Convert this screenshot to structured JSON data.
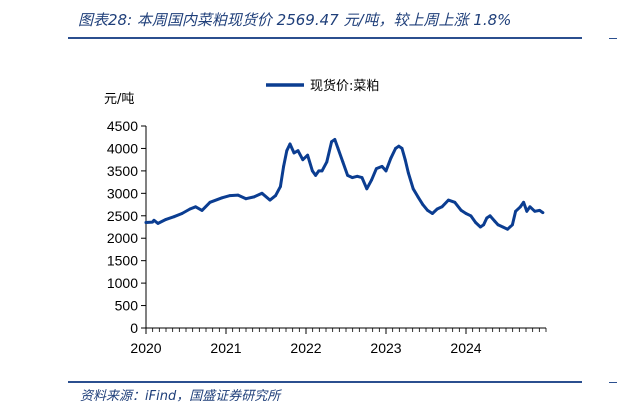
{
  "figure": {
    "title": "图表28:  本周国内菜粕现货价 2569.47 元/吨，较上周上涨 1.8%",
    "source": "资料来源：iFind，国盛证券研究所"
  },
  "chart_data": {
    "type": "line",
    "title": "",
    "xlabel": "",
    "ylabel": "元/吨",
    "legend": {
      "position": "top-center"
    },
    "grid": false,
    "xlim": [
      2020.0,
      2025.0
    ],
    "ylim": [
      0,
      4500
    ],
    "x_ticks": [
      "2020",
      "2021",
      "2022",
      "2023",
      "2024"
    ],
    "y_ticks": [
      "0",
      "500",
      "1000",
      "1500",
      "2000",
      "2500",
      "3000",
      "3500",
      "4000",
      "4500"
    ],
    "series": [
      {
        "name": "现货价:菜粕",
        "color": "#0b3d91",
        "x": [
          2020.0,
          2020.08,
          2020.1,
          2020.15,
          2020.25,
          2020.35,
          2020.45,
          2020.55,
          2020.62,
          2020.7,
          2020.8,
          2020.95,
          2021.05,
          2021.15,
          2021.25,
          2021.35,
          2021.45,
          2021.55,
          2021.62,
          2021.68,
          2021.72,
          2021.76,
          2021.8,
          2021.85,
          2021.9,
          2021.96,
          2022.02,
          2022.08,
          2022.12,
          2022.16,
          2022.2,
          2022.26,
          2022.32,
          2022.36,
          2022.4,
          2022.46,
          2022.52,
          2022.58,
          2022.64,
          2022.7,
          2022.76,
          2022.82,
          2022.88,
          2022.95,
          2023.0,
          2023.06,
          2023.12,
          2023.16,
          2023.2,
          2023.24,
          2023.28,
          2023.34,
          2023.4,
          2023.46,
          2023.52,
          2023.58,
          2023.64,
          2023.7,
          2023.78,
          2023.86,
          2023.94,
          2024.0,
          2024.06,
          2024.12,
          2024.18,
          2024.22,
          2024.26,
          2024.3,
          2024.36,
          2024.4,
          2024.46,
          2024.52,
          2024.58,
          2024.62,
          2024.68,
          2024.72,
          2024.76,
          2024.8,
          2024.86,
          2024.92,
          2024.96
        ],
        "values": [
          2350,
          2360,
          2400,
          2330,
          2420,
          2480,
          2550,
          2650,
          2700,
          2620,
          2800,
          2900,
          2950,
          2960,
          2880,
          2920,
          3000,
          2850,
          2950,
          3150,
          3600,
          3950,
          4100,
          3900,
          3950,
          3750,
          3850,
          3500,
          3400,
          3500,
          3500,
          3700,
          4150,
          4200,
          4000,
          3700,
          3400,
          3350,
          3380,
          3350,
          3100,
          3300,
          3550,
          3600,
          3500,
          3780,
          4000,
          4050,
          4000,
          3750,
          3450,
          3100,
          2920,
          2750,
          2620,
          2550,
          2650,
          2700,
          2850,
          2800,
          2620,
          2550,
          2500,
          2350,
          2250,
          2300,
          2450,
          2500,
          2380,
          2300,
          2250,
          2200,
          2300,
          2600,
          2700,
          2800,
          2600,
          2700,
          2600,
          2620,
          2570
        ]
      }
    ]
  }
}
